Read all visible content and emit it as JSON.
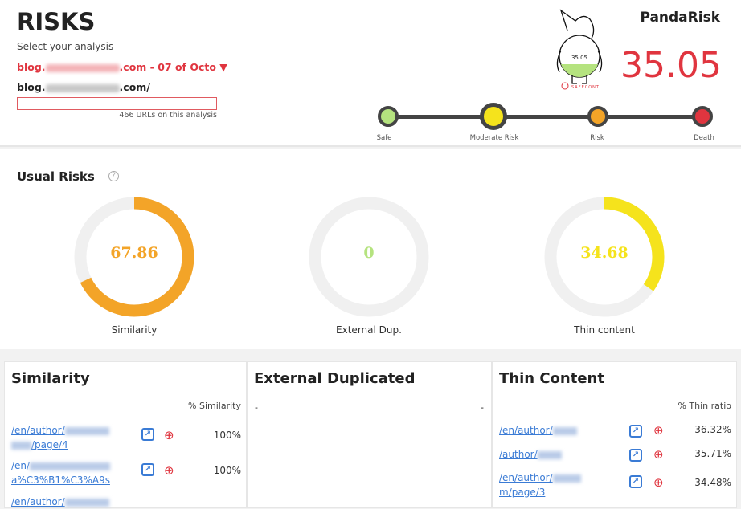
{
  "header": {
    "title": "RISKS",
    "select_label": "Select your analysis",
    "analysis_prefix": "blog.",
    "analysis_suffix": ".com - 07 of Octo",
    "domain_prefix": "blog.",
    "domain_suffix": ".com/",
    "search_value": "",
    "url_count": "466 URLs on this analysis"
  },
  "brand": {
    "name": "PandaRisk",
    "score": "35.05",
    "mascot_score": "35.05",
    "mascot_fill_percent": 35.05,
    "logo_text": "SAFECONT"
  },
  "risk_scale": {
    "levels": [
      {
        "label": "Safe",
        "color": "#b5e37f"
      },
      {
        "label": "Moderate Risk",
        "color": "#f5e31c",
        "active": true
      },
      {
        "label": "Risk",
        "color": "#f3a428"
      },
      {
        "label": "Death",
        "color": "#e0353f"
      }
    ]
  },
  "usual_risks": {
    "title": "Usual Risks",
    "help": "?",
    "gauges": [
      {
        "label": "Similarity",
        "value": "67.86",
        "percent": 67.86,
        "color": "#f3a428"
      },
      {
        "label": "External Dup.",
        "value": "0",
        "percent": 0,
        "color": "#b5e37f"
      },
      {
        "label": "Thin content",
        "value": "34.68",
        "percent": 34.68,
        "color": "#f5e31c"
      }
    ]
  },
  "panels": {
    "similarity": {
      "title": "Similarity",
      "column": "% Similarity",
      "rows": [
        {
          "url_a": "/en/author/",
          "url_b": "/page/4",
          "value": "100%"
        },
        {
          "url_a": "/en/",
          "url_b": "a%C3%B1%C3%A9s",
          "value": "100%"
        },
        {
          "url_a": "/en/author/",
          "url_b": "",
          "value": ""
        }
      ]
    },
    "external": {
      "title": "External Duplicated",
      "left": "-",
      "right": "-"
    },
    "thin": {
      "title": "Thin Content",
      "column": "% Thin ratio",
      "rows": [
        {
          "url_a": "/en/author/",
          "url_b": "",
          "value": "36.32%"
        },
        {
          "url_a": "/author/",
          "url_b": "",
          "value": "35.71%"
        },
        {
          "url_a": "/en/author/",
          "url_b": "m/page/3",
          "value": "34.48%"
        }
      ]
    }
  }
}
